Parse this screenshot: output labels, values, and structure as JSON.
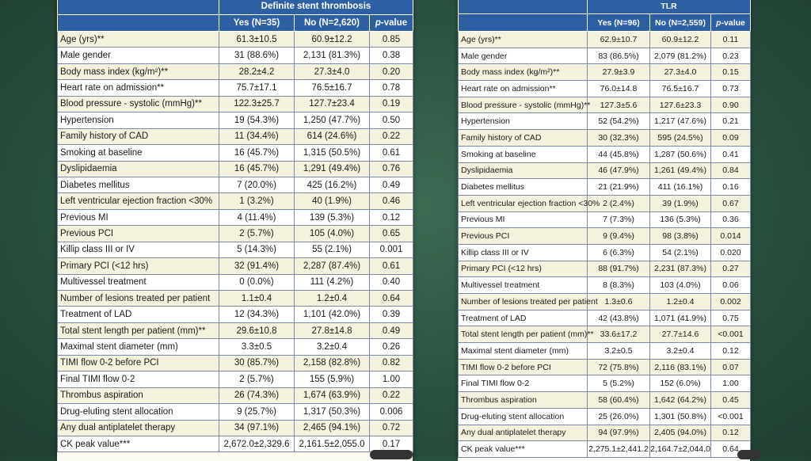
{
  "left_table": {
    "group_title": "Definite stent thrombosis",
    "columns": {
      "yes": "Yes (N=35)",
      "no": "No (N=2,620)",
      "p_label": "-value",
      "p_letter": "p"
    },
    "rows": [
      {
        "label": "Age (yrs)**",
        "yes": "61.3±10.5",
        "no": "60.9±12.2",
        "p": "0.85"
      },
      {
        "label": "Male gender",
        "yes": "31 (88.6%)",
        "no": "2,131 (81.3%)",
        "p": "0.38"
      },
      {
        "label": "Body mass index (kg/m²)**",
        "yes": "28.2±4.2",
        "no": "27.3±4.0",
        "p": "0.20"
      },
      {
        "label": "Heart rate on admission**",
        "yes": "75.7±17.1",
        "no": "76.5±16.7",
        "p": "0.78"
      },
      {
        "label": "Blood pressure - systolic (mmHg)**",
        "yes": "122.3±25.7",
        "no": "127.7±23.4",
        "p": "0.19"
      },
      {
        "label": "Hypertension",
        "yes": "19 (54.3%)",
        "no": "1,250 (47.7%)",
        "p": "0.50"
      },
      {
        "label": "Family history of CAD",
        "yes": "11 (34.4%)",
        "no": "614 (24.6%)",
        "p": "0.22"
      },
      {
        "label": "Smoking at baseline",
        "yes": "16 (45.7%)",
        "no": "1,315 (50.5%)",
        "p": "0.61"
      },
      {
        "label": "Dyslipidaemia",
        "yes": "16 (45.7%)",
        "no": "1,291 (49.4%)",
        "p": "0.76"
      },
      {
        "label": "Diabetes mellitus",
        "yes": "7 (20.0%)",
        "no": "425 (16.2%)",
        "p": "0.49"
      },
      {
        "label": "Left ventricular ejection fraction <30%",
        "yes": "1 (3.2%)",
        "no": "40 (1.9%)",
        "p": "0.46"
      },
      {
        "label": "Previous MI",
        "yes": "4 (11.4%)",
        "no": "139 (5.3%)",
        "p": "0.12"
      },
      {
        "label": "Previous PCI",
        "yes": "2 (5.7%)",
        "no": "105 (4.0%)",
        "p": "0.65"
      },
      {
        "label": "Killip class III or IV",
        "yes": "5 (14.3%)",
        "no": "55 (2.1%)",
        "p": "0.001"
      },
      {
        "label": "Primary PCI (<12 hrs)",
        "yes": "32 (91.4%)",
        "no": "2,287 (87.4%)",
        "p": "0.61"
      },
      {
        "label": "Multivessel treatment",
        "yes": "0 (0.0%)",
        "no": "111 (4.2%)",
        "p": "0.40"
      },
      {
        "label": "Number of lesions treated per patient",
        "yes": "1.1±0.4",
        "no": "1.2±0.4",
        "p": "0.64"
      },
      {
        "label": "Treatment of LAD",
        "yes": "12 (34.3%)",
        "no": "1,101 (42.0%)",
        "p": "0.39"
      },
      {
        "label": "Total stent length per patient (mm)**",
        "yes": "29.6±10.8",
        "no": "27.8±14.8",
        "p": "0.49"
      },
      {
        "label": "Maximal stent diameter (mm)",
        "yes": "3.3±0.5",
        "no": "3.2±0.4",
        "p": "0.26"
      },
      {
        "label": "TIMI flow 0-2 before PCI",
        "yes": "30 (85.7%)",
        "no": "2,158 (82.8%)",
        "p": "0.82"
      },
      {
        "label": "Final TIMI flow 0-2",
        "yes": "2 (5.7%)",
        "no": "155 (5.9%)",
        "p": "1.00"
      },
      {
        "label": "Thrombus aspiration",
        "yes": "26 (74.3%)",
        "no": "1,674 (63.9%)",
        "p": "0.22"
      },
      {
        "label": "Drug-eluting stent allocation",
        "yes": "9 (25.7%)",
        "no": "1,317 (50.3%)",
        "p": "0.006"
      },
      {
        "label": "Any dual antiplatelet therapy",
        "yes": "34 (97.1%)",
        "no": "2,465 (94.1%)",
        "p": "0.72"
      },
      {
        "label": "CK peak value***",
        "yes": "2,672.0±2,329.6",
        "no": "2,161.5±2,055.0",
        "p": "0.17"
      }
    ]
  },
  "right_table": {
    "group_title": "TLR",
    "columns": {
      "yes": "Yes (N=96)",
      "no": "No (N=2,559)",
      "p_label": "-value",
      "p_letter": "p"
    },
    "rows": [
      {
        "label": "Age (yrs)**",
        "yes": "62.9±10.7",
        "no": "60.9±12.2",
        "p": "0.11"
      },
      {
        "label": "Male gender",
        "yes": "83 (86.5%)",
        "no": "2,079 (81.2%)",
        "p": "0.23"
      },
      {
        "label": "Body mass index (kg/m²)**",
        "yes": "27.9±3.9",
        "no": "27.3±4.0",
        "p": "0.15"
      },
      {
        "label": "Heart rate on admission**",
        "yes": "76.0±14.8",
        "no": "76.5±16.7",
        "p": "0.73"
      },
      {
        "label": "Blood pressure - systolic (mmHg)**",
        "yes": "127.3±5.6",
        "no": "127.6±23.3",
        "p": "0.90"
      },
      {
        "label": "Hypertension",
        "yes": "52 (54.2%)",
        "no": "1,217 (47.6%)",
        "p": "0.21"
      },
      {
        "label": "Family history of CAD",
        "yes": "30 (32.3%)",
        "no": "595 (24.5%)",
        "p": "0.09"
      },
      {
        "label": "Smoking at baseline",
        "yes": "44 (45.8%)",
        "no": "1,287 (50.6%)",
        "p": "0.41"
      },
      {
        "label": "Dyslipidaemia",
        "yes": "46 (47.9%)",
        "no": "1,261 (49.4%)",
        "p": "0.84"
      },
      {
        "label": "Diabetes mellitus",
        "yes": "21 (21.9%)",
        "no": "411 (16.1%)",
        "p": "0.16"
      },
      {
        "label": "Left ventricular ejection fraction <30%",
        "yes": "2 (2.4%)",
        "no": "39 (1.9%)",
        "p": "0.67"
      },
      {
        "label": "Previous MI",
        "yes": "7 (7.3%)",
        "no": "136 (5.3%)",
        "p": "0.36"
      },
      {
        "label": "Previous PCI",
        "yes": "9 (9.4%)",
        "no": "98 (3.8%)",
        "p": "0.014"
      },
      {
        "label": "Killip class III or IV",
        "yes": "6 (6.3%)",
        "no": "54 (2.1%)",
        "p": "0.020"
      },
      {
        "label": "Primary PCI (<12 hrs)",
        "yes": "88 (91.7%)",
        "no": "2,231 (87.3%)",
        "p": "0.27"
      },
      {
        "label": "Multivessel treatment",
        "yes": "8 (8.3%)",
        "no": "103 (4.0%)",
        "p": "0.06"
      },
      {
        "label": "Number of lesions treated per patient",
        "yes": "1.3±0.6",
        "no": "1.2±0.4",
        "p": "0.002"
      },
      {
        "label": "Treatment of LAD",
        "yes": "42 (43.8%)",
        "no": "1,071 (41.9%)",
        "p": "0.75"
      },
      {
        "label": "Total stent length per patient (mm)**",
        "yes": "33.6±17.2",
        "no": "27.7±14.6",
        "p": "<0.001"
      },
      {
        "label": "Maximal stent diameter (mm)",
        "yes": "3.2±0.5",
        "no": "3.2±0.4",
        "p": "0.12"
      },
      {
        "label": "TIMI flow 0-2 before PCI",
        "yes": "72 (75.8%)",
        "no": "2,116 (83.1%)",
        "p": "0.07"
      },
      {
        "label": "Final TIMI flow 0-2",
        "yes": "5 (5.2%)",
        "no": "152 (6.0%)",
        "p": "1.00"
      },
      {
        "label": "Thrombus aspiration",
        "yes": "58 (60.4%)",
        "no": "1,642 (64.2%)",
        "p": "0.45"
      },
      {
        "label": "Drug-eluting stent allocation",
        "yes": "25 (26.0%)",
        "no": "1,301 (50.8%)",
        "p": "<0.001"
      },
      {
        "label": "Any dual antiplatelet therapy",
        "yes": "94 (97.9%)",
        "no": "2,405 (94.0%)",
        "p": "0.12"
      },
      {
        "label": "CK peak value***",
        "yes": "2,275.1±2,441.2",
        "no": "2,164.7±2,044.0",
        "p": "0.64"
      }
    ]
  },
  "colors": {
    "header_blue": "#2d5fa3",
    "row_alt": "#f4f2dc",
    "background_green": "#2a5140"
  }
}
